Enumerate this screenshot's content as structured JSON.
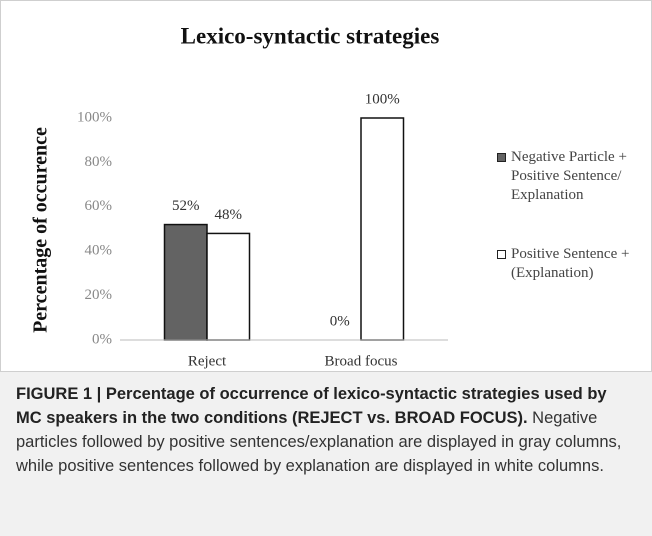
{
  "chart_data": {
    "type": "bar",
    "title": "Lexico-syntactic strategies",
    "ylabel": "Percentage of occurence",
    "categories": [
      "Reject",
      "Broad focus"
    ],
    "series": [
      {
        "name": "Negative Particle + Positive Sentence/ Explanation",
        "color": "#636363",
        "values": [
          52,
          0
        ],
        "value_labels": [
          "52%",
          "0%"
        ]
      },
      {
        "name": "Positive Sentence + (Explanation)",
        "color": "#ffffff",
        "values": [
          48,
          100
        ],
        "value_labels": [
          "48%",
          "100%"
        ]
      }
    ],
    "ylim": [
      0,
      100
    ],
    "yticks": [
      {
        "value": 0,
        "label": "0%"
      },
      {
        "value": 20,
        "label": "20%"
      },
      {
        "value": 40,
        "label": "40%"
      },
      {
        "value": 60,
        "label": "60%"
      },
      {
        "value": 80,
        "label": "80%"
      },
      {
        "value": 100,
        "label": "100%"
      }
    ],
    "grid": false,
    "legend": "right"
  },
  "caption": {
    "label": "FIGURE 1 | Percentage of occurrence of lexico-syntactic strategies used by MC speakers in the two conditions (REJECT vs. BROAD FOCUS).",
    "text": "Negative particles followed by positive sentences/explanation are displayed in gray columns, while positive sentences followed by explanation are displayed in white columns."
  }
}
